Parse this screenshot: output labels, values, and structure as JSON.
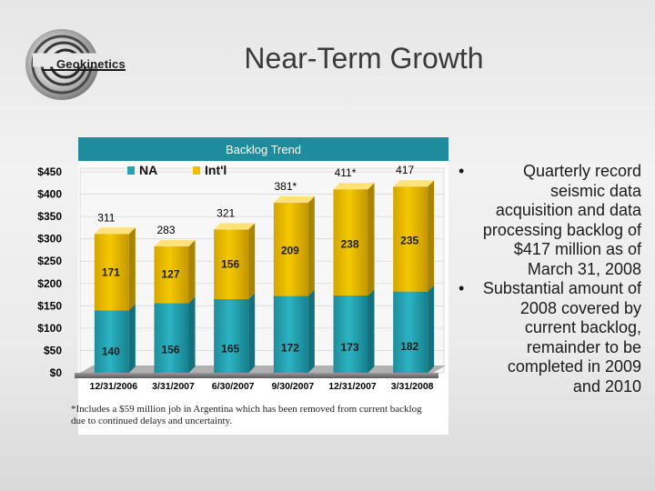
{
  "header": {
    "logo_text": "Geokinetics",
    "title": "Near-Term Growth"
  },
  "colors": {
    "na": "#23a3b3",
    "intl": "#f0c000",
    "header_bg": "#1e8c9c"
  },
  "chart_data": {
    "type": "bar",
    "stacked": true,
    "title": "Backlog Trend",
    "categories": [
      "12/31/2006",
      "3/31/2007",
      "6/30/2007",
      "9/30/2007",
      "12/31/2007",
      "3/31/2008"
    ],
    "series": [
      {
        "name": "NA",
        "values": [
          140,
          156,
          165,
          172,
          173,
          182
        ]
      },
      {
        "name": "Int'l",
        "values": [
          171,
          127,
          156,
          209,
          238,
          235
        ]
      }
    ],
    "totals": [
      "311",
      "283",
      "321",
      "381*",
      "411*",
      "417"
    ],
    "y_ticks": [
      "$0",
      "$50",
      "$100",
      "$150",
      "$200",
      "$250",
      "$300",
      "$350",
      "$400",
      "$450"
    ],
    "ylim": [
      0,
      450
    ],
    "legend_position": "top",
    "footnote": "*Includes a $59 million job in Argentina which has been removed from current backlog due to continued delays and uncertainty."
  },
  "bullets": [
    {
      "marker": "•",
      "text": "Quarterly record seismic data acquisition and data processing backlog of $417 million as of March 31, 2008"
    },
    {
      "marker": "•",
      "text": "Substantial amount of 2008 covered by current backlog, remainder to be completed in 2009 and 2010"
    }
  ]
}
